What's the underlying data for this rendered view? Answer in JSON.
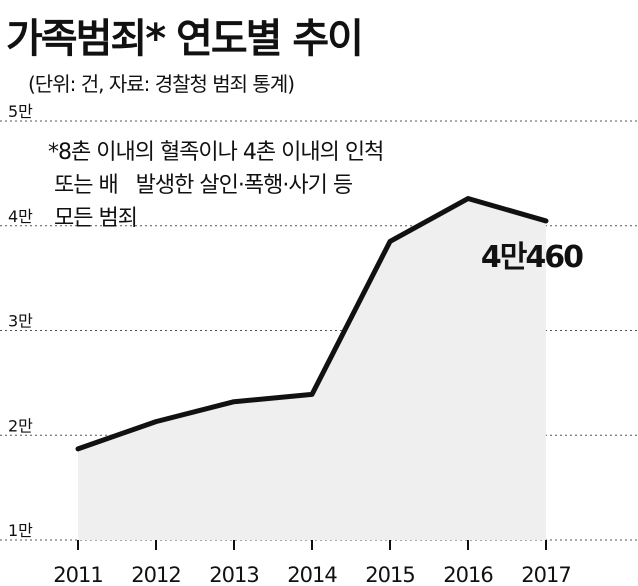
{
  "header": {
    "title": "가족범죄* 연도별 추이",
    "subtitle": "(단위: 건, 자료: 경찰청 범죄 통계)"
  },
  "note": {
    "lines": [
      "*8촌 이내의 혈족이나 4촌 이내의 인척",
      " 또는 배   발생한 살인·폭행·사기 등",
      " 모든 범죄"
    ]
  },
  "colors": {
    "line": "#111111",
    "fill": "#efefef",
    "grid": "#555555"
  },
  "chart_data": {
    "type": "area",
    "title": "가족범죄* 연도별 추이",
    "categories": [
      "2011",
      "2012",
      "2013",
      "2014",
      "2015",
      "2016",
      "2017"
    ],
    "values": [
      18700,
      21300,
      23200,
      23900,
      38500,
      42600,
      40460
    ],
    "ylim": [
      10000,
      50000
    ],
    "yticks": [
      10000,
      20000,
      30000,
      40000,
      50000
    ],
    "ytick_labels": [
      "1만",
      "2만",
      "3만",
      "4만",
      "5만"
    ],
    "annotation": {
      "label": "4만460",
      "category": "2017"
    },
    "grid": "horizontal-dashed",
    "legend": "none"
  }
}
